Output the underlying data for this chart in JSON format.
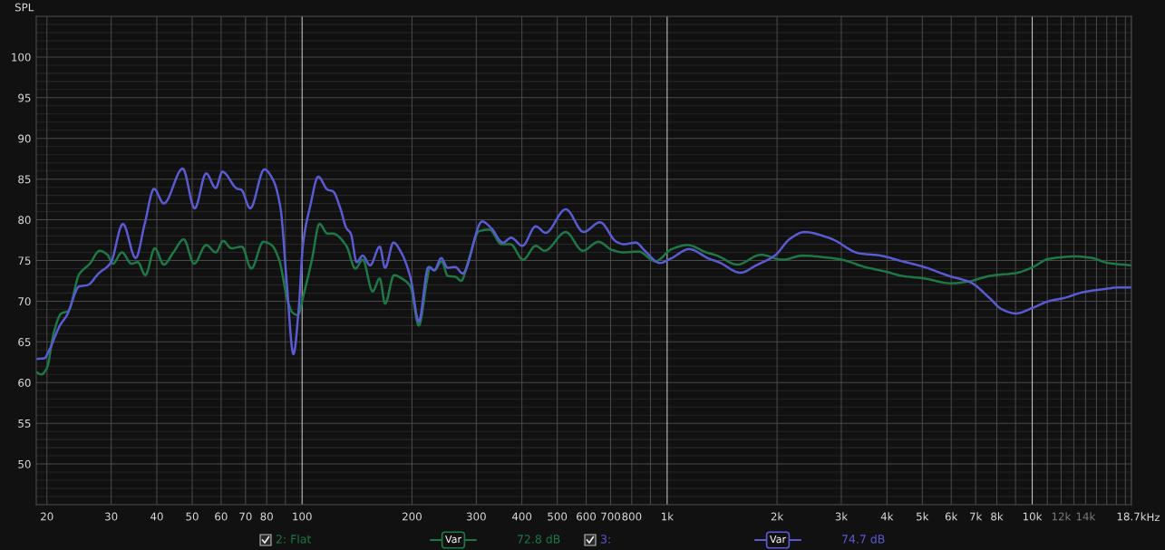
{
  "chart_data": {
    "type": "line",
    "ylabel": "SPL",
    "xlabel": "Hz",
    "log": "x",
    "grid": true,
    "legend": "bottom",
    "xlim": [
      18.7,
      18700
    ],
    "ylim": [
      45,
      105
    ],
    "xticks": [
      20,
      30,
      40,
      50,
      60,
      70,
      80,
      {
        "value": 90,
        "label": null
      },
      100,
      200,
      300,
      400,
      500,
      600,
      700,
      800,
      {
        "value": 900,
        "label": null
      },
      {
        "value": 1000,
        "label": "1k"
      },
      {
        "value": 2000,
        "label": "2k"
      },
      {
        "value": 3000,
        "label": "3k"
      },
      {
        "value": 4000,
        "label": "4k"
      },
      {
        "value": 5000,
        "label": "5k"
      },
      {
        "value": 6000,
        "label": "6k"
      },
      {
        "value": 7000,
        "label": "7k"
      },
      {
        "value": 8000,
        "label": "8k"
      },
      {
        "value": 9000,
        "label": null
      },
      {
        "value": 10000,
        "label": "10k"
      },
      {
        "value": 11000,
        "label": null
      },
      {
        "value": 12000,
        "label": "12k"
      },
      {
        "value": 13000,
        "label": null
      },
      {
        "value": 14000,
        "label": "14k"
      },
      {
        "value": 15000,
        "label": null
      },
      {
        "value": 16000,
        "label": null
      },
      {
        "value": 17000,
        "label": null
      },
      {
        "value": 18000,
        "label": null
      },
      {
        "value": 18700,
        "label": "18.7k"
      }
    ],
    "yticks": [
      50,
      55,
      60,
      65,
      70,
      75,
      80,
      85,
      90,
      95,
      100
    ],
    "annotations": [
      "Var",
      "72.8 dB",
      "Var",
      "74.7 dB"
    ],
    "series": [
      {
        "name": "2: Flat",
        "color": "#1e7846",
        "x": [
          18.7,
          19.3,
          20,
          20.9,
          21.9,
          22.9,
          24.5,
          26.2,
          27.9,
          29.3,
          30.3,
          32.1,
          34.1,
          35.5,
          37.2,
          39.5,
          41.8,
          44.4,
          47.4,
          50.6,
          54.6,
          58.0,
          60.8,
          64.0,
          68.4,
          72.6,
          78.3,
          82.5,
          86.5,
          91.5,
          94.2,
          97.2,
          101.5,
          106.4,
          111.6,
          117.4,
          121.5,
          132.2,
          139.9,
          146.6,
          156,
          163.2,
          168.8,
          178.6,
          189,
          198.1,
          208.8,
          219.7,
          223.9,
          230.3,
          241.3,
          250.6,
          262.7,
          272.9,
          285.9,
          305.4,
          326.3,
          351.8,
          372.3,
          402.9,
          436.7,
          461.9,
          527.5,
          587.1,
          648.4,
          706,
          761.3,
          836,
          927.8,
          1029,
          1137,
          1280,
          1370,
          1557,
          1804,
          2070,
          2351,
          2698,
          3006,
          3483,
          3996,
          4406,
          5057,
          5974,
          6656,
          7636,
          9110,
          10050,
          11090,
          13230,
          14600,
          16100,
          18700
        ],
        "values": [
          61.3,
          61.0,
          61.8,
          66.2,
          68.5,
          68.8,
          73.3,
          74.6,
          76.2,
          75.7,
          74.6,
          76.0,
          74.6,
          74.8,
          73.2,
          76.5,
          74.5,
          76.0,
          77.6,
          74.6,
          76.9,
          76.0,
          77.4,
          76.5,
          76.7,
          74.0,
          77.3,
          76.9,
          75.1,
          69.9,
          68.6,
          68.3,
          71.2,
          75.1,
          79.5,
          78.3,
          78.3,
          76.8,
          74.0,
          75.1,
          71.2,
          72.8,
          69.7,
          73.2,
          72.7,
          71.8,
          67.0,
          72.5,
          74.2,
          73.8,
          74.9,
          73.1,
          73.0,
          72.5,
          75.1,
          78.6,
          78.8,
          77.0,
          77.0,
          75.1,
          76.8,
          76.2,
          78.5,
          76.2,
          77.3,
          76.3,
          76.0,
          76.1,
          74.9,
          76.4,
          76.9,
          76.0,
          75.6,
          74.5,
          75.7,
          75.1,
          75.6,
          75.4,
          75.1,
          74.2,
          73.6,
          73.1,
          72.8,
          72.2,
          72.4,
          73.1,
          73.5,
          74.2,
          75.2,
          75.5,
          75.3,
          74.7,
          74.4
        ]
      },
      {
        "name": "3:",
        "color": "#5a5ad2",
        "x": [
          18.7,
          19.7,
          20.3,
          21.7,
          22.7,
          24.5,
          25.9,
          27.7,
          29.9,
          32.3,
          35.0,
          37.1,
          39.3,
          41.8,
          47.1,
          50.8,
          54.6,
          58.0,
          60.5,
          66.5,
          68.1,
          72.1,
          78.8,
          83.3,
          87.3,
          90.7,
          94.7,
          97.8,
          100.6,
          105.4,
          110.7,
          117.4,
          121.5,
          127.3,
          132.2,
          136,
          141.1,
          146.6,
          153.6,
          163.2,
          168.8,
          177.9,
          187.3,
          198.1,
          208.8,
          221.8,
          230.3,
          240.5,
          250.6,
          262.7,
          275.4,
          311.2,
          329.4,
          355.1,
          373.7,
          401.3,
          436.7,
          464.6,
          527.5,
          590.4,
          654.6,
          726.1,
          761.3,
          820.7,
          868.5,
          954.3,
          1029,
          1148,
          1305,
          1384,
          1588,
          1752,
          1971,
          2175,
          2375,
          2806,
          3349,
          3842,
          4322,
          5057,
          5917,
          6785,
          7636,
          8262,
          9024,
          10050,
          11090,
          12240,
          13760,
          15790,
          17410,
          18700
        ],
        "values": [
          62.9,
          63.0,
          64.0,
          67.0,
          68.3,
          71.8,
          72.0,
          73.4,
          74.7,
          79.5,
          75.3,
          79.6,
          83.8,
          82.0,
          86.3,
          81.4,
          85.7,
          83.9,
          85.9,
          83.8,
          83.7,
          81.4,
          86.2,
          84.9,
          81.4,
          72.5,
          63.5,
          68.8,
          77.0,
          81.8,
          85.3,
          83.7,
          83.5,
          81.4,
          79.0,
          78.3,
          74.8,
          75.6,
          74.4,
          76.7,
          74.1,
          77.2,
          75.9,
          72.9,
          67.5,
          74.2,
          73.8,
          75.3,
          74.1,
          74.2,
          73.4,
          79.8,
          79.0,
          77.2,
          77.8,
          76.8,
          79.2,
          78.4,
          81.3,
          78.5,
          79.7,
          77.3,
          77.0,
          77.2,
          76.2,
          74.7,
          75.3,
          76.4,
          75.2,
          74.8,
          73.5,
          74.4,
          75.6,
          77.7,
          78.5,
          77.7,
          75.9,
          75.6,
          75.0,
          74.2,
          73.1,
          72.3,
          70.4,
          69.0,
          68.5,
          69.2,
          70.0,
          70.4,
          71.1,
          71.5,
          71.7,
          71.7
        ]
      }
    ]
  }
}
